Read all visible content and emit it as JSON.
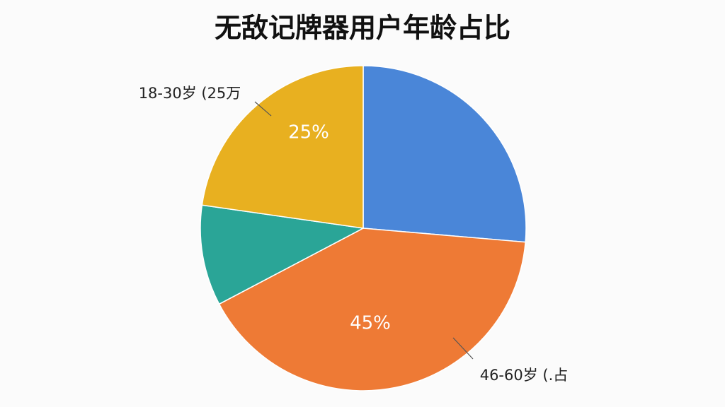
{
  "chart_data": {
    "type": "pie",
    "title": "无敌记牌器用户年龄占比",
    "categories": [
      null,
      "46-60岁 (.占",
      null,
      "18-30岁 (25万"
    ],
    "values": [
      29,
      45,
      11,
      25
    ],
    "value_labels": [
      null,
      "45%",
      null,
      "25%"
    ],
    "colors": [
      "#4a86d8",
      "#ee7a35",
      "#2aa597",
      "#e8b020"
    ]
  }
}
